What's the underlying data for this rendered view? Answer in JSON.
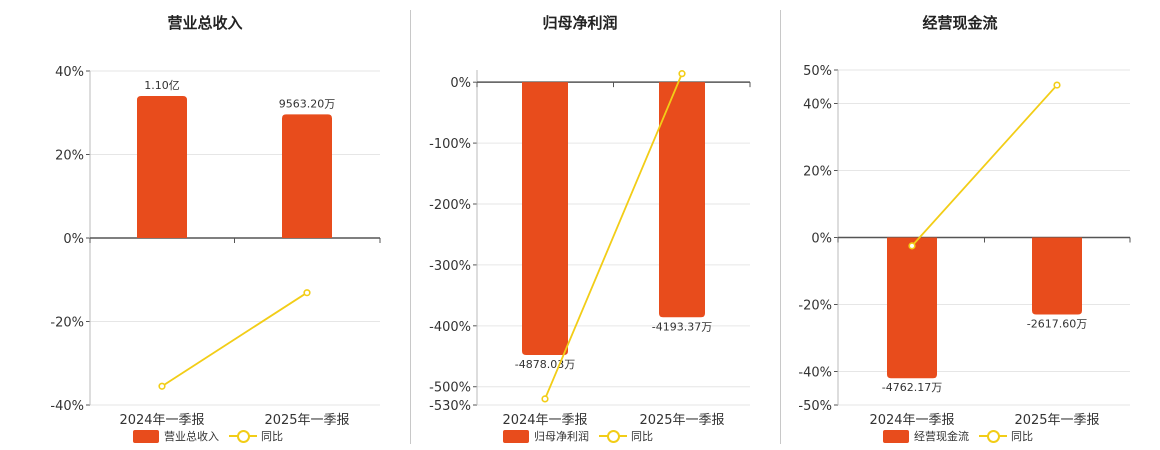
{
  "colors": {
    "bar": "#e84c1c",
    "line": "#f2cd17",
    "axis": "#555555",
    "grid": "#e6e6e6"
  },
  "legend_line_label": "同比",
  "chart_data": [
    {
      "type": "bar",
      "title": "营业总收入",
      "categories": [
        "2024年一季报",
        "2025年一季报"
      ],
      "series": [
        {
          "name": "营业总收入",
          "type": "bar",
          "values_yuan": [
            110000000,
            95632000
          ],
          "labels": [
            "1.10亿",
            "9563.20万"
          ]
        },
        {
          "name": "同比",
          "type": "line",
          "values_pct": [
            -35.5,
            -13.1
          ]
        }
      ],
      "ylim": [
        -40,
        40
      ],
      "yticks": [
        40,
        20,
        0,
        -20,
        -40
      ],
      "ytick_labels": [
        "40%",
        "20%",
        "0%",
        "-20%",
        "-40%"
      ],
      "bar_scale_pct": [
        34,
        29.6
      ],
      "grid": true,
      "legend": "bottom"
    },
    {
      "type": "bar",
      "title": "归母净利润",
      "categories": [
        "2024年一季报",
        "2025年一季报"
      ],
      "series": [
        {
          "name": "归母净利润",
          "type": "bar",
          "values_yuan": [
            -48780300,
            -41933700
          ],
          "labels": [
            "-4878.03万",
            "-4193.37万"
          ]
        },
        {
          "name": "同比",
          "type": "line",
          "values_pct": [
            -520,
            14
          ]
        }
      ],
      "ylim": [
        -530,
        20
      ],
      "yticks": [
        0,
        -100,
        -200,
        -300,
        -400,
        -500,
        -530
      ],
      "ytick_labels": [
        "0%",
        "-100%",
        "-200%",
        "-300%",
        "-400%",
        "-500%",
        "-530%"
      ],
      "bar_scale_pct": [
        -448,
        -386
      ],
      "grid": true,
      "legend": "bottom"
    },
    {
      "type": "bar",
      "title": "经营现金流",
      "categories": [
        "2024年一季报",
        "2025年一季报"
      ],
      "series": [
        {
          "name": "经营现金流",
          "type": "bar",
          "values_yuan": [
            -47621700,
            -26176000
          ],
          "labels": [
            "-4762.17万",
            "-2617.60万"
          ]
        },
        {
          "name": "同比",
          "type": "line",
          "values_pct": [
            -2.5,
            45.5
          ]
        }
      ],
      "ylim": [
        -50,
        50
      ],
      "yticks": [
        50,
        40,
        20,
        0,
        -20,
        -40,
        -50
      ],
      "ytick_labels": [
        "50%",
        "40%",
        "20%",
        "0%",
        "-20%",
        "-40%",
        "-50%"
      ],
      "bar_scale_pct": [
        -42,
        -23
      ],
      "grid": true,
      "legend": "bottom"
    }
  ]
}
